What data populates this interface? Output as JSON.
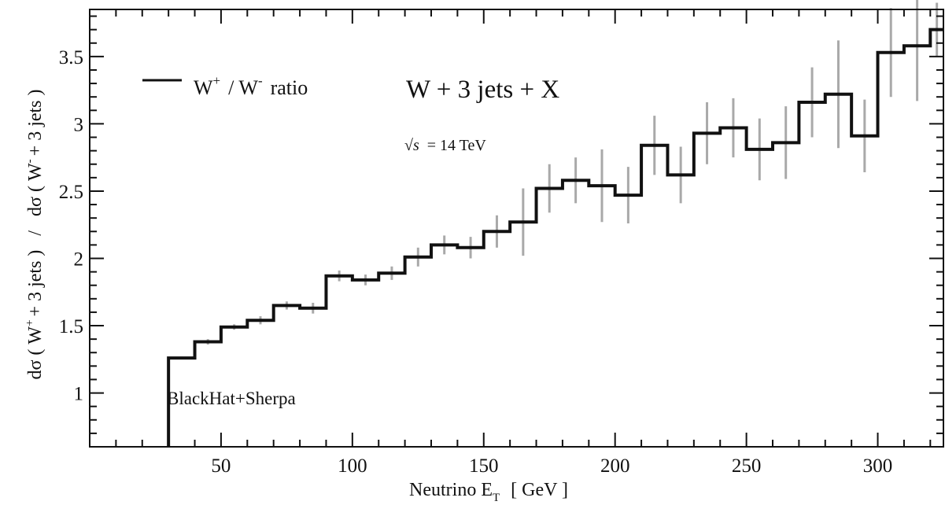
{
  "chart_data": {
    "type": "line",
    "title": "W + 3 jets + X",
    "energy_label": {
      "root": "√s",
      "text": "= 14 TeV"
    },
    "generator_label": "BlackHat+Sherpa",
    "legend": {
      "placement": "top-left",
      "parts": [
        "W",
        "+",
        "/ W",
        "-",
        "ratio"
      ]
    },
    "xlabel": {
      "main": "Neutrino E",
      "sub": "T",
      "unit": "[ GeV ]"
    },
    "ylabel": {
      "num_pre": "dσ ( W",
      "num_sup": "+",
      "num_post": "+ 3 jets )",
      "slash": "/",
      "den_pre": "dσ ( W",
      "den_sup": "-",
      "den_post": "+ 3 jets )"
    },
    "xlim": [
      0,
      325
    ],
    "ylim": [
      0.6,
      3.85
    ],
    "xticks": [
      50,
      100,
      150,
      200,
      250,
      300
    ],
    "yticks": [
      1,
      1.5,
      2,
      2.5,
      3,
      3.5
    ],
    "grid": false,
    "series": [
      {
        "style": "step-histogram",
        "bin_edges": [
          30,
          40,
          50,
          60,
          70,
          80,
          90,
          100,
          110,
          120,
          130,
          140,
          150,
          160,
          170,
          180,
          190,
          200,
          210,
          220,
          230,
          240,
          250,
          260,
          270,
          280,
          290,
          300,
          310,
          320,
          325
        ],
        "values": [
          1.26,
          1.38,
          1.49,
          1.54,
          1.65,
          1.63,
          1.87,
          1.84,
          1.89,
          2.01,
          2.1,
          2.08,
          2.2,
          2.27,
          2.52,
          2.58,
          2.54,
          2.47,
          2.84,
          2.62,
          2.93,
          2.97,
          2.81,
          2.86,
          3.16,
          3.22,
          2.91,
          3.53,
          3.58,
          3.7
        ],
        "errors": [
          0.01,
          0.02,
          0.02,
          0.03,
          0.03,
          0.04,
          0.04,
          0.04,
          0.05,
          0.07,
          0.07,
          0.08,
          0.12,
          0.25,
          0.18,
          0.17,
          0.27,
          0.21,
          0.22,
          0.21,
          0.23,
          0.22,
          0.23,
          0.27,
          0.26,
          0.4,
          0.27,
          0.33,
          0.41,
          0.2
        ]
      }
    ]
  }
}
